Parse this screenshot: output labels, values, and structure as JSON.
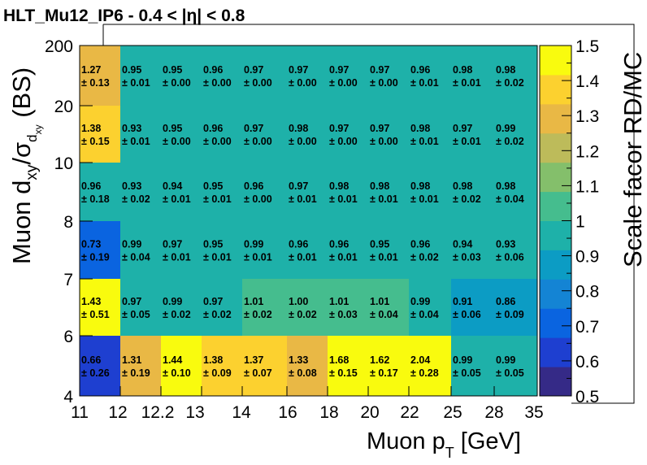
{
  "chart_data": {
    "type": "heatmap",
    "title": "HLT_Mu12_IP6  -  0.4 < |η| < 0.8",
    "xlabel": "Muon p_T [GeV]",
    "ylabel": "Muon d_xy/σ_dxy (BS)",
    "zlabel": "Scale facor RD/MC",
    "x_edges": [
      "11",
      "12",
      "12.2",
      "13",
      "14",
      "16",
      "18",
      "20",
      "22",
      "25",
      "28",
      "35"
    ],
    "y_edges": [
      "4",
      "6",
      "7",
      "8",
      "10",
      "20",
      "200"
    ],
    "x_tick_labels": [
      "11",
      "12",
      "12.2",
      "13",
      "14",
      "16",
      "18",
      "20",
      "22",
      "25",
      "28",
      "35"
    ],
    "y_tick_labels": [
      "4",
      "6",
      "7",
      "8",
      "10",
      "20",
      "200"
    ],
    "zlim": [
      0.5,
      1.5
    ],
    "z_tick_labels": [
      "0.5",
      "0.6",
      "0.7",
      "0.8",
      "0.9",
      "1",
      "1.1",
      "1.2",
      "1.3",
      "1.4",
      "1.5"
    ],
    "rows_bottom_to_top": [
      {
        "values": [
          "0.66",
          "1.31",
          "1.44",
          "1.38",
          "1.37",
          "1.33",
          "1.68",
          "1.62",
          "2.04",
          "0.99",
          "0.99"
        ],
        "errors": [
          "± 0.26",
          "± 0.19",
          "± 0.10",
          "± 0.09",
          "± 0.07",
          "± 0.08",
          "± 0.15",
          "± 0.17",
          "± 0.28",
          "± 0.05",
          "± 0.05"
        ]
      },
      {
        "values": [
          "1.43",
          "0.97",
          "0.99",
          "0.97",
          "1.01",
          "1.00",
          "1.01",
          "1.01",
          "0.99",
          "0.91",
          "0.86"
        ],
        "errors": [
          "± 0.51",
          "± 0.05",
          "± 0.02",
          "± 0.02",
          "± 0.02",
          "± 0.02",
          "± 0.03",
          "± 0.04",
          "± 0.04",
          "± 0.06",
          "± 0.09"
        ]
      },
      {
        "values": [
          "0.73",
          "0.99",
          "0.97",
          "0.95",
          "0.99",
          "0.96",
          "0.96",
          "0.95",
          "0.96",
          "0.94",
          "0.93"
        ],
        "errors": [
          "± 0.19",
          "± 0.04",
          "± 0.01",
          "± 0.01",
          "± 0.01",
          "± 0.01",
          "± 0.01",
          "± 0.01",
          "± 0.02",
          "± 0.03",
          "± 0.06"
        ]
      },
      {
        "values": [
          "0.96",
          "0.93",
          "0.94",
          "0.95",
          "0.96",
          "0.97",
          "0.98",
          "0.98",
          "0.98",
          "0.98",
          "0.98"
        ],
        "errors": [
          "± 0.18",
          "± 0.02",
          "± 0.01",
          "± 0.01",
          "± 0.00",
          "± 0.01",
          "± 0.01",
          "± 0.01",
          "± 0.01",
          "± 0.02",
          "± 0.04"
        ]
      },
      {
        "values": [
          "1.38",
          "0.93",
          "0.95",
          "0.96",
          "0.97",
          "0.98",
          "0.97",
          "0.97",
          "0.98",
          "0.97",
          "0.99"
        ],
        "errors": [
          "± 0.15",
          "± 0.01",
          "± 0.00",
          "± 0.00",
          "± 0.00",
          "± 0.00",
          "± 0.00",
          "± 0.00",
          "± 0.01",
          "± 0.01",
          "± 0.02"
        ]
      },
      {
        "values": [
          "1.27",
          "0.95",
          "0.95",
          "0.96",
          "0.97",
          "0.97",
          "0.97",
          "0.97",
          "0.96",
          "0.98",
          "0.98"
        ],
        "errors": [
          "± 0.13",
          "± 0.01",
          "± 0.00",
          "± 0.00",
          "± 0.00",
          "± 0.00",
          "± 0.00",
          "± 0.00",
          "± 0.01",
          "± 0.01",
          "± 0.02"
        ]
      }
    ],
    "palette": [
      "#352a87",
      "#1e3fd0",
      "#0a64e0",
      "#1484d4",
      "#0c9cc4",
      "#1eb1a9",
      "#45bd8e",
      "#84bf6b",
      "#bdbb5a",
      "#e9b845",
      "#fcd12f",
      "#f9fb0e"
    ],
    "grid": false,
    "legend": "colorbar-right"
  }
}
